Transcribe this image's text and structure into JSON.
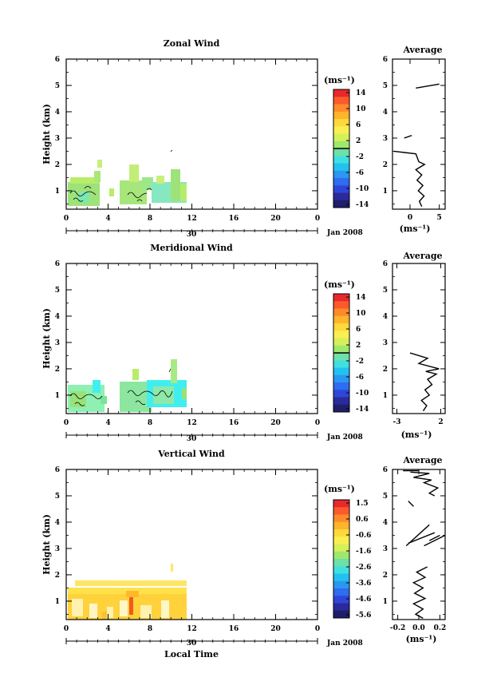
{
  "chart_data": [
    {
      "type": "heatmap",
      "title": "Zonal Wind",
      "ylabel": "Height (km)",
      "xlabel": "",
      "x_ticks": [
        "0",
        "4",
        "8",
        "12",
        "16",
        "20",
        "0"
      ],
      "y_ticks": [
        "1",
        "2",
        "3",
        "4",
        "5",
        "6"
      ],
      "xlim": [
        0,
        24
      ],
      "ylim": [
        0.3,
        6
      ],
      "date_day": "30",
      "date_label": "Jan 2008",
      "colorbar": {
        "unit": "(ms⁻¹)",
        "labels": [
          "14",
          "10",
          "6",
          "2",
          "-2",
          "-6",
          "-10",
          "-14"
        ],
        "zero_line_value": 0
      },
      "average_panel": {
        "title": "Average",
        "xlabel": "(ms⁻¹)",
        "x_ticks": [
          "0",
          "5"
        ],
        "xlim": [
          -3,
          6
        ],
        "profile_segments": [
          [
            [
              5.0,
              5.05
            ],
            [
              1.0,
              4.9
            ]
          ],
          [
            [
              0.3,
              3.1
            ],
            [
              -1.0,
              3.0
            ]
          ],
          [
            [
              -2.8,
              2.5
            ],
            [
              1.0,
              2.4
            ],
            [
              1.5,
              2.1
            ],
            [
              2.5,
              2.0
            ],
            [
              1.0,
              1.8
            ],
            [
              2.0,
              1.6
            ],
            [
              1.2,
              1.4
            ],
            [
              2.2,
              1.2
            ],
            [
              1.4,
              1.0
            ],
            [
              2.4,
              0.8
            ],
            [
              1.6,
              0.6
            ],
            [
              2.0,
              0.4
            ]
          ]
        ]
      }
    },
    {
      "type": "heatmap",
      "title": "Meridional Wind",
      "ylabel": "Height (km)",
      "xlabel": "",
      "x_ticks": [
        "0",
        "4",
        "8",
        "12",
        "16",
        "20",
        "0"
      ],
      "y_ticks": [
        "1",
        "2",
        "3",
        "4",
        "5",
        "6"
      ],
      "xlim": [
        0,
        24
      ],
      "ylim": [
        0.3,
        6
      ],
      "date_day": "30",
      "date_label": "Jan 2008",
      "colorbar": {
        "unit": "(ms⁻¹)",
        "labels": [
          "14",
          "10",
          "6",
          "2",
          "-2",
          "-6",
          "-10",
          "-14"
        ],
        "zero_line_value": 0
      },
      "average_panel": {
        "title": "Average",
        "xlabel": "(ms⁻¹)",
        "x_ticks": [
          "-3",
          "2"
        ],
        "xlim": [
          -3.5,
          2.5
        ],
        "profile_segments": [
          [
            [
              -1.5,
              2.6
            ],
            [
              0.5,
              2.4
            ],
            [
              -0.5,
              2.2
            ],
            [
              1.8,
              2.0
            ],
            [
              0.3,
              1.9
            ],
            [
              1.5,
              1.8
            ],
            [
              0.5,
              1.6
            ],
            [
              1.0,
              1.4
            ],
            [
              0.2,
              1.2
            ],
            [
              0.7,
              1.0
            ],
            [
              -0.2,
              0.8
            ],
            [
              0.4,
              0.6
            ],
            [
              0.0,
              0.4
            ]
          ]
        ]
      }
    },
    {
      "type": "heatmap",
      "title": "Vertical Wind",
      "ylabel": "Height (km)",
      "xlabel": "Local Time",
      "x_ticks": [
        "0",
        "4",
        "8",
        "12",
        "16",
        "20",
        "0"
      ],
      "y_ticks": [
        "1",
        "2",
        "3",
        "4",
        "5",
        "6"
      ],
      "xlim": [
        0,
        24
      ],
      "ylim": [
        0.3,
        6
      ],
      "date_day": "30",
      "date_label": "Jan 2008",
      "colorbar": {
        "unit": "(ms⁻¹)",
        "labels": [
          "1.5",
          "0.6",
          "-0.6",
          "-1.6",
          "-2.6",
          "-3.6",
          "-4.6",
          "-5.6"
        ]
      },
      "average_panel": {
        "title": "Average",
        "xlabel": "(ms⁻¹)",
        "x_ticks": [
          "-0.2",
          "0.0",
          "0.2"
        ],
        "xlim": [
          -0.25,
          0.25
        ],
        "profile_segments": [
          [
            [
              -0.08,
              5.9
            ],
            [
              0.1,
              5.85
            ],
            [
              -0.05,
              5.7
            ],
            [
              0.12,
              5.6
            ],
            [
              0.05,
              5.5
            ],
            [
              0.18,
              5.3
            ],
            [
              0.1,
              5.1
            ],
            [
              0.15,
              5.0
            ]
          ],
          [
            [
              -0.15,
              5.95
            ],
            [
              0.0,
              5.95
            ]
          ],
          [
            [
              -0.1,
              4.8
            ],
            [
              -0.05,
              4.6
            ]
          ],
          [
            [
              -0.1,
              3.2
            ],
            [
              0.15,
              3.6
            ]
          ],
          [
            [
              0.05,
              3.1
            ],
            [
              0.25,
              3.5
            ]
          ],
          [
            [
              -0.12,
              3.1
            ],
            [
              0.1,
              3.9
            ]
          ],
          [
            [
              0.1,
              3.3
            ],
            [
              0.2,
              3.5
            ]
          ],
          [
            [
              0.08,
              2.3
            ],
            [
              -0.02,
              2.1
            ],
            [
              0.06,
              1.9
            ],
            [
              -0.05,
              1.7
            ],
            [
              0.04,
              1.5
            ],
            [
              -0.04,
              1.3
            ],
            [
              0.06,
              1.1
            ],
            [
              -0.05,
              0.9
            ],
            [
              0.04,
              0.7
            ],
            [
              -0.03,
              0.5
            ],
            [
              0.04,
              0.35
            ]
          ]
        ]
      }
    }
  ]
}
